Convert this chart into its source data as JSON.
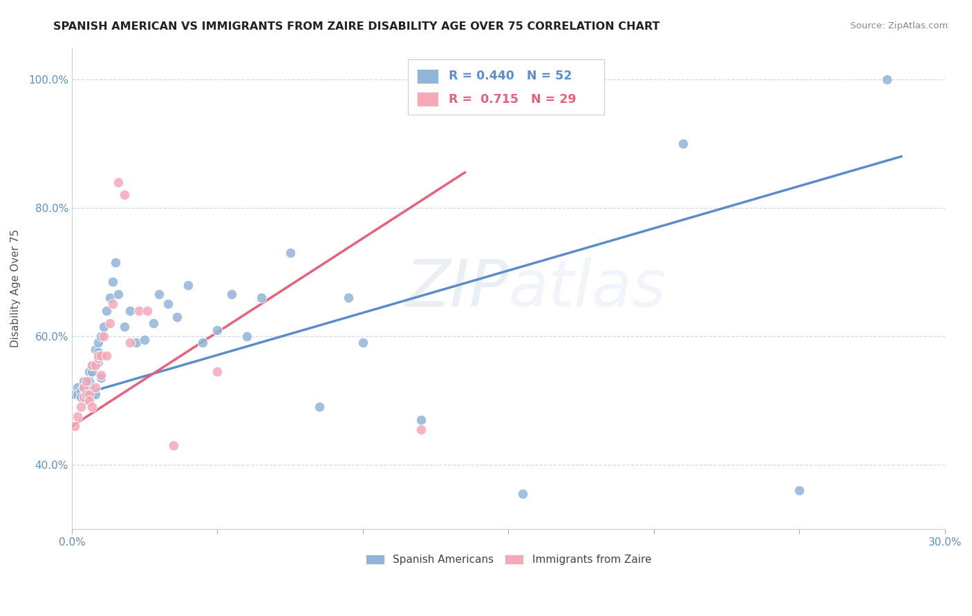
{
  "title": "SPANISH AMERICAN VS IMMIGRANTS FROM ZAIRE DISABILITY AGE OVER 75 CORRELATION CHART",
  "source": "Source: ZipAtlas.com",
  "ylabel": "Disability Age Over 75",
  "xlim": [
    0.0,
    0.3
  ],
  "ylim": [
    0.3,
    1.05
  ],
  "xticks": [
    0.0,
    0.05,
    0.1,
    0.15,
    0.2,
    0.25,
    0.3
  ],
  "xtick_labels": [
    "0.0%",
    "",
    "",
    "",
    "",
    "",
    "30.0%"
  ],
  "yticks": [
    0.4,
    0.6,
    0.8,
    1.0
  ],
  "ytick_labels": [
    "40.0%",
    "60.0%",
    "80.0%",
    "100.0%"
  ],
  "blue_R": 0.44,
  "blue_N": 52,
  "pink_R": 0.715,
  "pink_N": 29,
  "blue_color": "#92b4d7",
  "pink_color": "#f4a8b8",
  "blue_line_color": "#5b8ec9",
  "pink_line_color": "#e8607a",
  "watermark_zip": "ZIP",
  "watermark_atlas": "atlas",
  "background_color": "#ffffff",
  "grid_color": "#d0d8e8",
  "blue_scatter_x": [
    0.001,
    0.002,
    0.002,
    0.003,
    0.003,
    0.004,
    0.004,
    0.005,
    0.005,
    0.005,
    0.006,
    0.006,
    0.006,
    0.007,
    0.007,
    0.007,
    0.008,
    0.008,
    0.009,
    0.009,
    0.009,
    0.01,
    0.01,
    0.011,
    0.012,
    0.013,
    0.014,
    0.015,
    0.016,
    0.018,
    0.02,
    0.022,
    0.025,
    0.028,
    0.03,
    0.033,
    0.036,
    0.04,
    0.045,
    0.05,
    0.055,
    0.06,
    0.065,
    0.075,
    0.085,
    0.095,
    0.1,
    0.12,
    0.155,
    0.21,
    0.25,
    0.28
  ],
  "blue_scatter_y": [
    0.51,
    0.52,
    0.51,
    0.515,
    0.505,
    0.53,
    0.52,
    0.5,
    0.525,
    0.51,
    0.545,
    0.52,
    0.53,
    0.51,
    0.545,
    0.555,
    0.51,
    0.58,
    0.56,
    0.575,
    0.59,
    0.535,
    0.6,
    0.615,
    0.64,
    0.66,
    0.685,
    0.715,
    0.665,
    0.615,
    0.64,
    0.59,
    0.595,
    0.62,
    0.665,
    0.65,
    0.63,
    0.68,
    0.59,
    0.61,
    0.665,
    0.6,
    0.66,
    0.73,
    0.49,
    0.66,
    0.59,
    0.47,
    0.355,
    0.9,
    0.36,
    1.0
  ],
  "pink_scatter_x": [
    0.001,
    0.002,
    0.003,
    0.004,
    0.004,
    0.005,
    0.005,
    0.006,
    0.006,
    0.007,
    0.007,
    0.008,
    0.008,
    0.009,
    0.009,
    0.01,
    0.01,
    0.011,
    0.012,
    0.013,
    0.014,
    0.016,
    0.018,
    0.02,
    0.023,
    0.026,
    0.035,
    0.05,
    0.12
  ],
  "pink_scatter_y": [
    0.46,
    0.475,
    0.49,
    0.505,
    0.52,
    0.53,
    0.51,
    0.51,
    0.5,
    0.555,
    0.49,
    0.555,
    0.52,
    0.565,
    0.57,
    0.54,
    0.57,
    0.6,
    0.57,
    0.62,
    0.65,
    0.84,
    0.82,
    0.59,
    0.64,
    0.64,
    0.43,
    0.545,
    0.455
  ],
  "blue_trendline_x": [
    0.0,
    0.285
  ],
  "blue_trendline_y": [
    0.505,
    0.88
  ],
  "pink_trendline_x": [
    0.0,
    0.135
  ],
  "pink_trendline_y": [
    0.46,
    0.855
  ]
}
